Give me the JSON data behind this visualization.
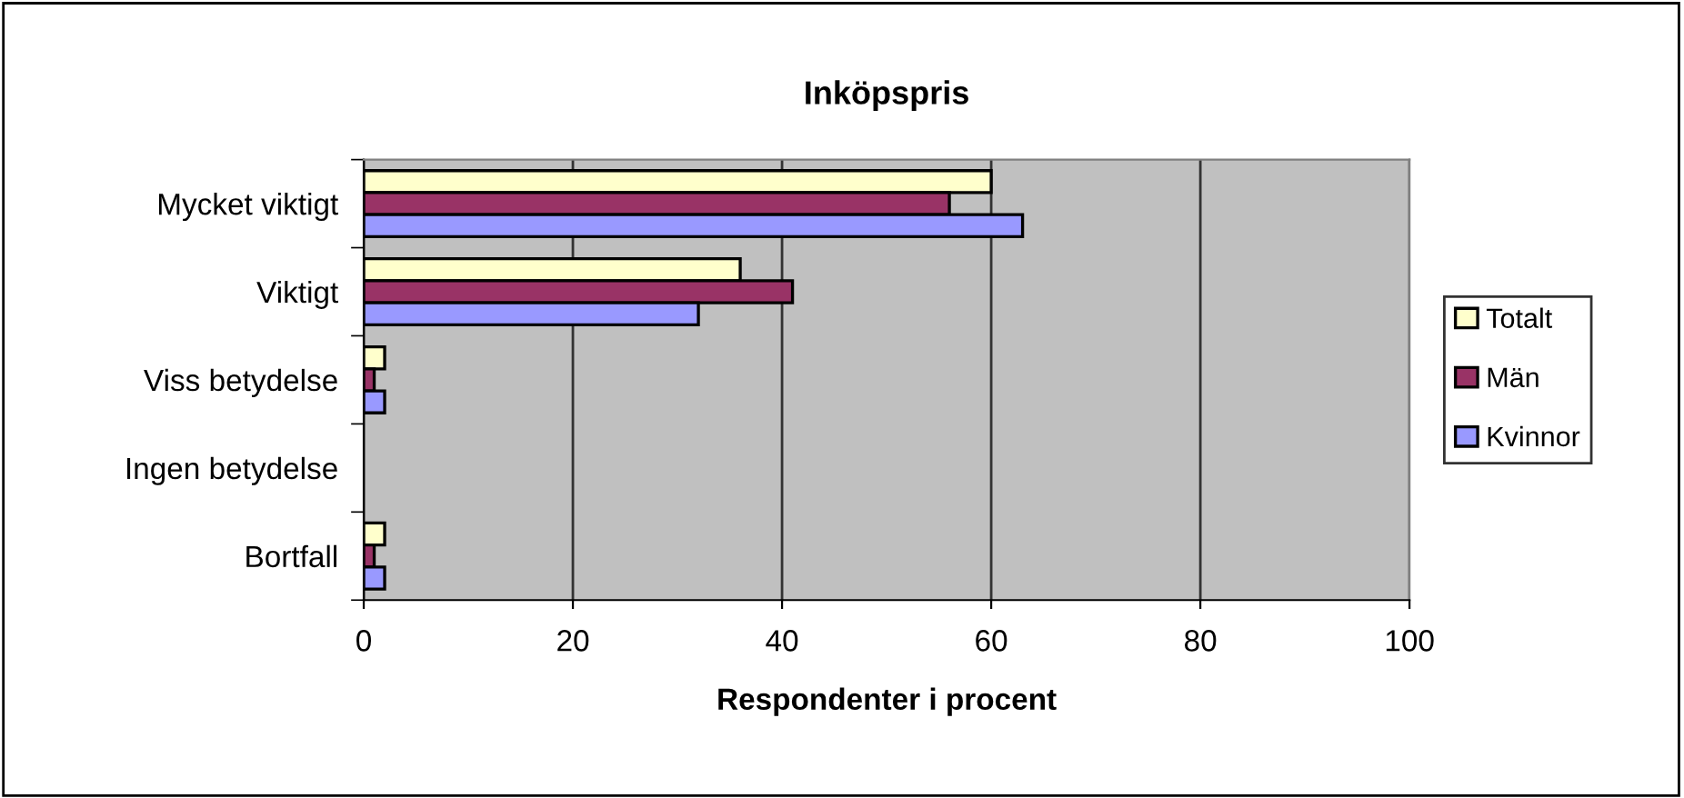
{
  "chart_data": {
    "type": "bar",
    "orientation": "horizontal",
    "title": "Inköpspris",
    "xlabel": "Respondenter i procent",
    "categories": [
      "Mycket viktigt",
      "Viktigt",
      "Viss betydelse",
      "Ingen betydelse",
      "Bortfall"
    ],
    "series": [
      {
        "name": "Totalt",
        "color": "#ffffcc",
        "values": [
          60,
          36,
          2,
          null,
          2
        ]
      },
      {
        "name": "Män",
        "color": "#993366",
        "values": [
          56,
          41,
          1,
          null,
          1
        ]
      },
      {
        "name": "Kvinnor",
        "color": "#9999ff",
        "values": [
          63,
          32,
          2,
          null,
          2
        ]
      }
    ],
    "xlim": [
      0,
      100
    ],
    "xticks": [
      0,
      20,
      40,
      60,
      80,
      100
    ],
    "grid": "x",
    "legend": "right"
  }
}
